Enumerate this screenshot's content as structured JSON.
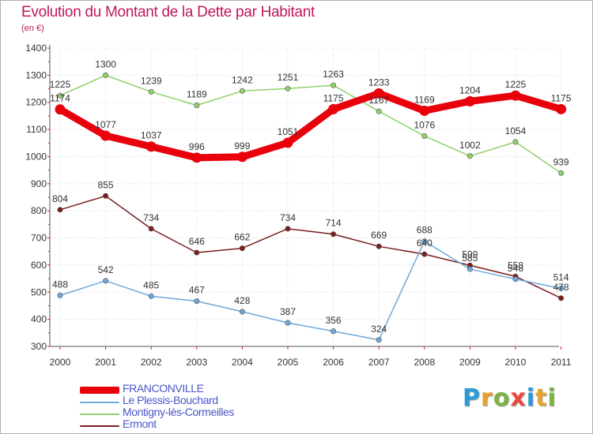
{
  "title": "Evolution du Montant de la Dette par Habitant",
  "subtitle": "(en €)",
  "logo": {
    "text": "Proxiti",
    "letter_colors": [
      "#2a9bd6",
      "#e8a22b",
      "#7cb342",
      "#e84c3d",
      "#2a9bd6",
      "#e8a22b",
      "#7cb342"
    ]
  },
  "chart_data": {
    "type": "line",
    "title": "Evolution du Montant de la Dette par Habitant",
    "ylabel": "(en €)",
    "xlabel": "",
    "x": [
      "2000",
      "2001",
      "2002",
      "2003",
      "2004",
      "2005",
      "2006",
      "2007",
      "2008",
      "2009",
      "2010",
      "2011"
    ],
    "ylim": [
      300,
      1400
    ],
    "yticks": [
      "300",
      "400",
      "500",
      "600",
      "700",
      "800",
      "900",
      "1000",
      "1100",
      "1200",
      "1300",
      "1400"
    ],
    "grid": true,
    "legend_position": "bottom-left",
    "series": [
      {
        "name": "FRANCONVILLE",
        "color": "#e8000b",
        "values": [
          1174,
          1077,
          1037,
          996,
          999,
          1051,
          1175,
          1233,
          1169,
          1204,
          1225,
          1175
        ],
        "labels": [
          "1174",
          "1077",
          "1037",
          "996",
          "999",
          "1051",
          "1175",
          "1233",
          "1169",
          "1204",
          "1225",
          "1175"
        ]
      },
      {
        "name": "Le Plessis-Bouchard",
        "color": "#6fa8dc",
        "values": [
          488,
          542,
          485,
          467,
          428,
          387,
          356,
          324,
          688,
          585,
          548,
          514
        ],
        "labels": [
          "488",
          "542",
          "485",
          "467",
          "428",
          "387",
          "356",
          "324",
          "688",
          "585",
          "548",
          "514"
        ]
      },
      {
        "name": "Montigny-lès-Cormeilles",
        "color": "#8fd16a",
        "values": [
          1225,
          1300,
          1239,
          1189,
          1242,
          1251,
          1263,
          1167,
          1076,
          1002,
          1054,
          939
        ],
        "labels": [
          "1225",
          "1300",
          "1239",
          "1189",
          "1242",
          "1251",
          "1263",
          "1167",
          "1076",
          "1002",
          "1054",
          "939"
        ]
      },
      {
        "name": "Ermont",
        "color": "#7b1e1e",
        "values": [
          804,
          855,
          734,
          646,
          662,
          734,
          714,
          669,
          640,
          599,
          558,
          478
        ],
        "labels": [
          "804",
          "855",
          "734",
          "646",
          "662",
          "734",
          "714",
          "669",
          "640",
          "599",
          "558",
          "478"
        ]
      }
    ]
  }
}
